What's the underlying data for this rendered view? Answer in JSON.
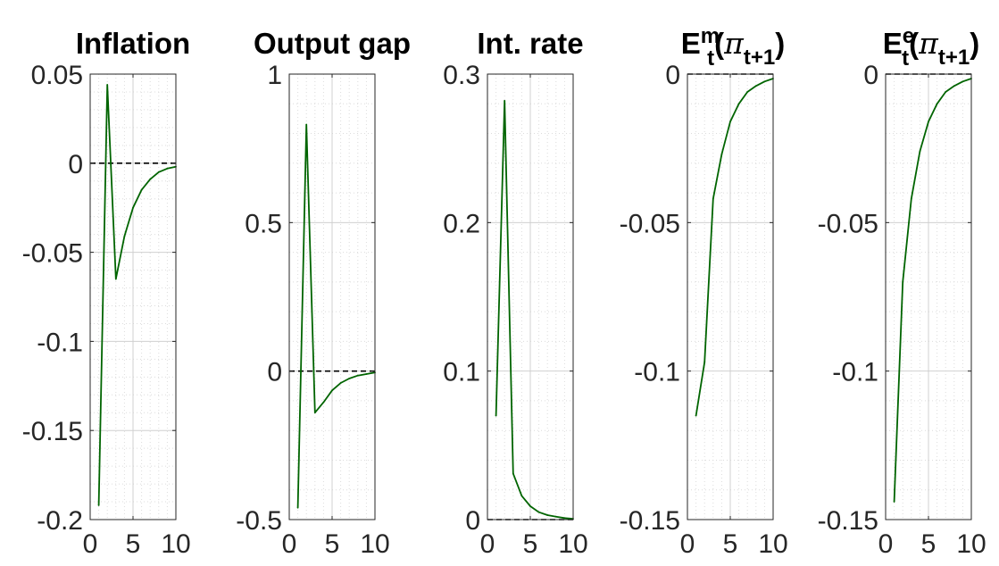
{
  "chart_data": [
    {
      "type": "line",
      "title": "Inflation",
      "xlim": [
        0,
        10
      ],
      "ylim": [
        -0.2,
        0.05
      ],
      "x_ticks": [
        0,
        5,
        10
      ],
      "x_tick_labels": [
        "0",
        "5",
        "10"
      ],
      "y_ticks": [
        0.05,
        0,
        -0.05,
        -0.1,
        -0.15,
        -0.2
      ],
      "y_tick_labels": [
        "0.05",
        "0",
        "-0.05",
        "-0.1",
        "-0.15",
        "-0.2"
      ],
      "grid": true,
      "zero_line": true,
      "series": [
        {
          "x": [
            1,
            2,
            3,
            4,
            5,
            6,
            7,
            8,
            9,
            10
          ],
          "values": [
            -0.192,
            0.044,
            -0.065,
            -0.041,
            -0.025,
            -0.015,
            -0.009,
            -0.005,
            -0.003,
            -0.002
          ],
          "color": "#006400"
        }
      ]
    },
    {
      "type": "line",
      "title": "Output gap",
      "xlim": [
        0,
        10
      ],
      "ylim": [
        -0.5,
        1
      ],
      "x_ticks": [
        0,
        5,
        10
      ],
      "x_tick_labels": [
        "0",
        "5",
        "10"
      ],
      "y_ticks": [
        1,
        0.5,
        0,
        -0.5
      ],
      "y_tick_labels": [
        "1",
        "0.5",
        "0",
        "-0.5"
      ],
      "grid": true,
      "zero_line": true,
      "series": [
        {
          "x": [
            1,
            2,
            3,
            4,
            5,
            6,
            7,
            8,
            9,
            10
          ],
          "values": [
            -0.46,
            0.83,
            -0.14,
            -0.105,
            -0.065,
            -0.04,
            -0.025,
            -0.015,
            -0.01,
            -0.005
          ],
          "color": "#006400"
        }
      ]
    },
    {
      "type": "line",
      "title": "Int. rate",
      "xlim": [
        0,
        10
      ],
      "ylim": [
        0,
        0.3
      ],
      "x_ticks": [
        0,
        5,
        10
      ],
      "x_tick_labels": [
        "0",
        "5",
        "10"
      ],
      "y_ticks": [
        0.3,
        0.2,
        0.1,
        0
      ],
      "y_tick_labels": [
        "0.3",
        "0.2",
        "0.1",
        "0"
      ],
      "grid": true,
      "zero_line": true,
      "series": [
        {
          "x": [
            1,
            2,
            3,
            4,
            5,
            6,
            7,
            8,
            9,
            10
          ],
          "values": [
            0.07,
            0.282,
            0.031,
            0.016,
            0.009,
            0.005,
            0.003,
            0.002,
            0.001,
            0.0005
          ],
          "color": "#006400"
        }
      ]
    },
    {
      "type": "line",
      "title": "E_t^m(π_t+1)",
      "title_parts": {
        "base": "E",
        "sup": "m",
        "sub": "t",
        "open": "(",
        "pi": "π",
        "pisub": "t+1",
        "close": ")"
      },
      "xlim": [
        0,
        10
      ],
      "ylim": [
        -0.15,
        0
      ],
      "x_ticks": [
        0,
        5,
        10
      ],
      "x_tick_labels": [
        "0",
        "5",
        "10"
      ],
      "y_ticks": [
        0,
        -0.05,
        -0.1,
        -0.15
      ],
      "y_tick_labels": [
        "0",
        "-0.05",
        "-0.1",
        "-0.15"
      ],
      "grid": true,
      "zero_line": true,
      "series": [
        {
          "x": [
            1,
            2,
            3,
            4,
            5,
            6,
            7,
            8,
            9,
            10
          ],
          "values": [
            -0.115,
            -0.097,
            -0.042,
            -0.027,
            -0.016,
            -0.01,
            -0.006,
            -0.004,
            -0.0025,
            -0.0015
          ],
          "color": "#006400"
        }
      ]
    },
    {
      "type": "line",
      "title": "E_t^e(π_t+1)",
      "title_parts": {
        "base": "E",
        "sup": "e",
        "sub": "t",
        "open": "(",
        "pi": "π",
        "pisub": "t+1",
        "close": ")"
      },
      "xlim": [
        0,
        10
      ],
      "ylim": [
        -0.15,
        0
      ],
      "x_ticks": [
        0,
        5,
        10
      ],
      "x_tick_labels": [
        "0",
        "5",
        "10"
      ],
      "y_ticks": [
        0,
        -0.05,
        -0.1,
        -0.15
      ],
      "y_tick_labels": [
        "0",
        "-0.05",
        "-0.1",
        "-0.15"
      ],
      "grid": true,
      "zero_line": true,
      "series": [
        {
          "x": [
            1,
            2,
            3,
            4,
            5,
            6,
            7,
            8,
            9,
            10
          ],
          "values": [
            -0.144,
            -0.07,
            -0.042,
            -0.026,
            -0.016,
            -0.01,
            -0.006,
            -0.004,
            -0.0025,
            -0.0015
          ],
          "color": "#006400"
        }
      ]
    }
  ]
}
